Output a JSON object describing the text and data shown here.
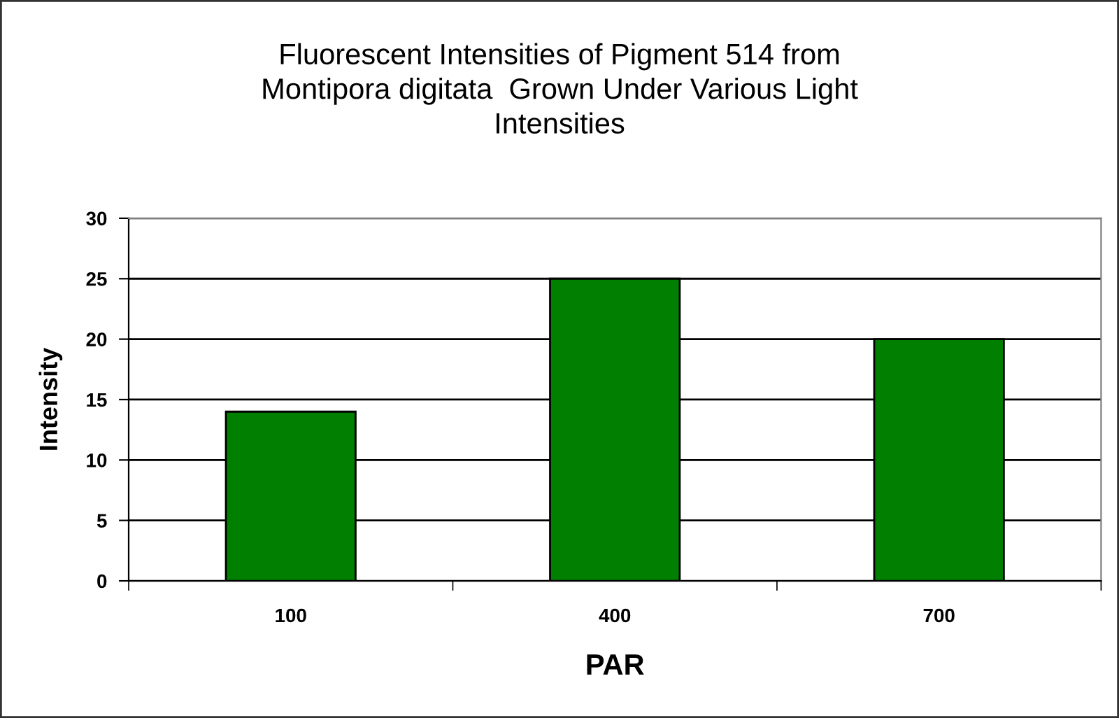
{
  "chart_data": {
    "type": "bar",
    "title": "Fluorescent Intensities of Pigment 514 from\nMontipora digitata  Grown Under Various Light\nIntensities",
    "xlabel": "PAR",
    "ylabel": "Intensity",
    "categories": [
      "100",
      "400",
      "700"
    ],
    "values": [
      14,
      25,
      20
    ],
    "color": "#007f00",
    "ylim": [
      0,
      30
    ],
    "yticks": [
      0,
      5,
      10,
      15,
      20,
      25,
      30
    ],
    "grid": "y",
    "legend": false
  }
}
